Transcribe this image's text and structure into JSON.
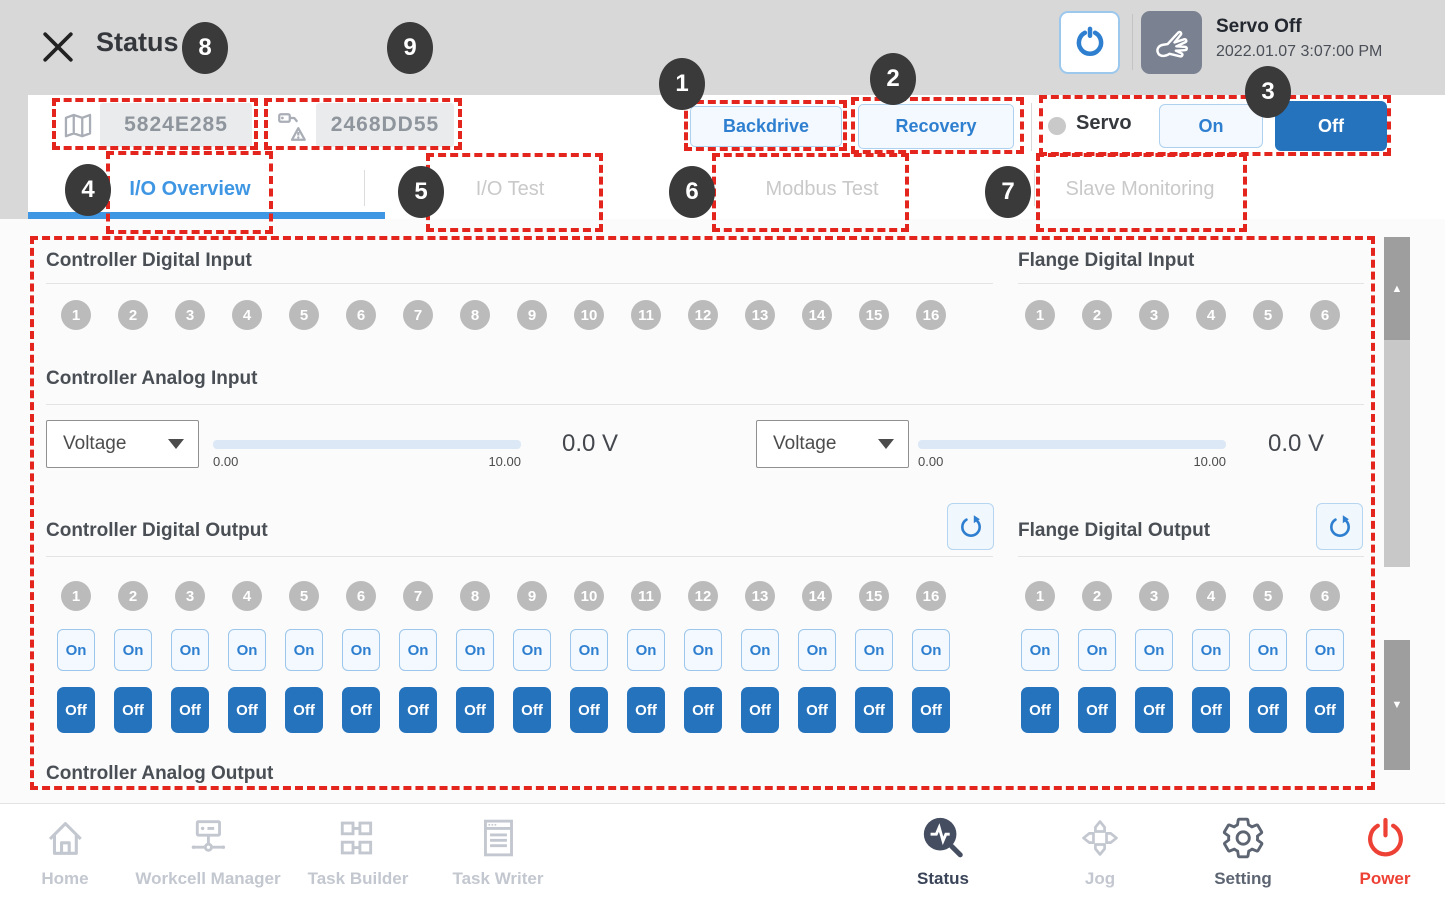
{
  "header": {
    "title": "Status",
    "servo_status": "Servo Off",
    "timestamp": "2022.01.07 3:07:00 PM"
  },
  "toolbar": {
    "robot_id": "5824E285",
    "module_id": "2468DD55",
    "backdrive": "Backdrive",
    "recovery": "Recovery",
    "servo": "Servo",
    "on": "On",
    "off": "Off"
  },
  "tabs": [
    {
      "label": "I/O Overview",
      "active": true
    },
    {
      "label": "I/O Test",
      "active": false
    },
    {
      "label": "Modbus Test",
      "active": false
    },
    {
      "label": "Slave Monitoring",
      "active": false
    }
  ],
  "io": {
    "on_label": "On",
    "off_label": "Off",
    "controller_digital_input": {
      "title": "Controller Digital Input",
      "channels": [
        "1",
        "2",
        "3",
        "4",
        "5",
        "6",
        "7",
        "8",
        "9",
        "10",
        "11",
        "12",
        "13",
        "14",
        "15",
        "16"
      ]
    },
    "flange_digital_input": {
      "title": "Flange Digital Input",
      "channels": [
        "1",
        "2",
        "3",
        "4",
        "5",
        "6"
      ]
    },
    "controller_analog_input": {
      "title": "Controller Analog Input",
      "channels": [
        {
          "mode": "Voltage",
          "min": "0.00",
          "max": "10.00",
          "value": "0.0 V"
        },
        {
          "mode": "Voltage",
          "min": "0.00",
          "max": "10.00",
          "value": "0.0 V"
        }
      ]
    },
    "controller_digital_output": {
      "title": "Controller Digital Output",
      "channels": [
        "1",
        "2",
        "3",
        "4",
        "5",
        "6",
        "7",
        "8",
        "9",
        "10",
        "11",
        "12",
        "13",
        "14",
        "15",
        "16"
      ]
    },
    "flange_digital_output": {
      "title": "Flange Digital Output",
      "channels": [
        "1",
        "2",
        "3",
        "4",
        "5",
        "6"
      ]
    },
    "controller_analog_output": {
      "title": "Controller Analog Output"
    }
  },
  "scrollbar": {
    "up": "▲",
    "down": "▼"
  },
  "nav": {
    "items": [
      {
        "label": "Home"
      },
      {
        "label": "Workcell Manager"
      },
      {
        "label": "Task Builder"
      },
      {
        "label": "Task Writer"
      },
      {
        "label": "Status"
      },
      {
        "label": "Jog"
      },
      {
        "label": "Setting"
      },
      {
        "label": "Power"
      }
    ]
  },
  "callouts": [
    "1",
    "2",
    "3",
    "4",
    "5",
    "6",
    "7",
    "8",
    "9"
  ],
  "colors": {
    "accent_blue": "#3f97e4",
    "button_blue": "#2573bd",
    "annotation_red": "#e3251d",
    "power_red": "#ee4135",
    "header_gray": "#d8d8d8"
  }
}
